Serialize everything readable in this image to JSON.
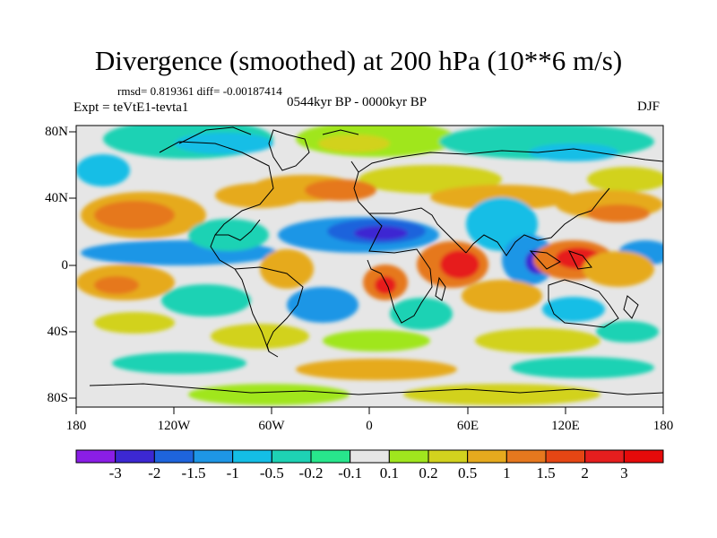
{
  "title": "Divergence (smoothed) at 200 hPa (10**6 m/s)",
  "stats_line": "rmsd= 0.819361 diff= -0.00187414",
  "period": "0544kyr BP - 0000kyr BP",
  "experiment": "Expt = teVtE1-tevta1",
  "season": "DJF",
  "y_axis_labels": [
    "80N",
    "40N",
    "0",
    "40S",
    "80S"
  ],
  "x_axis_labels": [
    "180",
    "120W",
    "60W",
    "0",
    "60E",
    "120E",
    "180"
  ],
  "colorbar": {
    "labels": [
      "-3",
      "-2",
      "-1.5",
      "-1",
      "-0.5",
      "-0.2",
      "-0.1",
      "0.1",
      "0.2",
      "0.5",
      "1",
      "1.5",
      "2",
      "3"
    ],
    "colors": [
      "#8a1ee6",
      "#3c28d2",
      "#1e64dc",
      "#1e96e6",
      "#14bee6",
      "#1ed2b4",
      "#28e68c",
      "#e6e6e6",
      "#a0e61e",
      "#d2d21e",
      "#e6aa1e",
      "#e6781e",
      "#e64614",
      "#e61e1e",
      "#e60a0a"
    ]
  },
  "colors": {
    "ocean_background": "#e6e6e6"
  }
}
